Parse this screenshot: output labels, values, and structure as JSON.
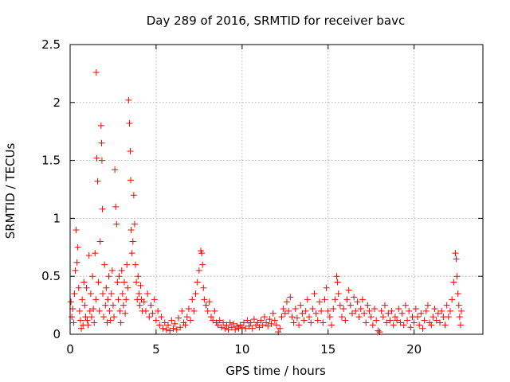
{
  "chart_data": {
    "type": "scatter",
    "title": "Day 289 of 2016, SRMTID for receiver bavc",
    "xlabel": "GPS time / hours",
    "ylabel": "SRMTID / TECUs",
    "xlim": [
      0,
      24
    ],
    "ylim": [
      0,
      2.5
    ],
    "x_ticks": [
      0,
      5,
      10,
      15,
      20
    ],
    "x_tick_labels": [
      "0",
      "5",
      "10",
      "15",
      "20"
    ],
    "y_ticks": [
      0,
      0.5,
      1,
      1.5,
      2,
      2.5
    ],
    "y_tick_labels": [
      "0",
      "0.5",
      "1",
      "1.5",
      "2",
      "2.5"
    ],
    "grid": true,
    "marker": "+",
    "color": "#ff0000",
    "points": [
      [
        0.05,
        0.28
      ],
      [
        0.1,
        0.15
      ],
      [
        0.15,
        0.22
      ],
      [
        0.2,
        0.1
      ],
      [
        0.25,
        0.35
      ],
      [
        0.3,
        0.55
      ],
      [
        0.35,
        0.9
      ],
      [
        0.4,
        0.62
      ],
      [
        0.45,
        0.75
      ],
      [
        0.5,
        0.4
      ],
      [
        0.55,
        0.2
      ],
      [
        0.6,
        0.12
      ],
      [
        0.65,
        0.05
      ],
      [
        0.7,
        0.3
      ],
      [
        0.75,
        0.08
      ],
      [
        0.8,
        0.45
      ],
      [
        0.85,
        0.25
      ],
      [
        0.9,
        0.15
      ],
      [
        0.95,
        0.4
      ],
      [
        1.0,
        0.12
      ],
      [
        1.05,
        0.08
      ],
      [
        1.1,
        0.68
      ],
      [
        1.15,
        0.2
      ],
      [
        1.2,
        0.35
      ],
      [
        1.25,
        0.15
      ],
      [
        1.3,
        0.5
      ],
      [
        1.35,
        0.22
      ],
      [
        1.4,
        0.1
      ],
      [
        1.45,
        0.7
      ],
      [
        1.5,
        0.3
      ],
      [
        1.52,
        2.26
      ],
      [
        1.55,
        1.52
      ],
      [
        1.6,
        1.32
      ],
      [
        1.65,
        0.45
      ],
      [
        1.7,
        0.2
      ],
      [
        1.75,
        0.8
      ],
      [
        1.8,
        1.8
      ],
      [
        1.83,
        1.65
      ],
      [
        1.85,
        1.5
      ],
      [
        1.88,
        1.08
      ],
      [
        1.9,
        0.35
      ],
      [
        1.95,
        0.15
      ],
      [
        2.0,
        0.6
      ],
      [
        2.05,
        0.25
      ],
      [
        2.1,
        0.4
      ],
      [
        2.15,
        0.1
      ],
      [
        2.2,
        0.3
      ],
      [
        2.25,
        0.5
      ],
      [
        2.3,
        0.2
      ],
      [
        2.35,
        0.12
      ],
      [
        2.4,
        0.35
      ],
      [
        2.45,
        0.55
      ],
      [
        2.5,
        0.25
      ],
      [
        2.55,
        0.15
      ],
      [
        2.6,
        1.42
      ],
      [
        2.65,
        1.1
      ],
      [
        2.7,
        0.95
      ],
      [
        2.75,
        0.45
      ],
      [
        2.8,
        0.3
      ],
      [
        2.85,
        0.5
      ],
      [
        2.9,
        0.2
      ],
      [
        2.95,
        0.1
      ],
      [
        3.0,
        0.55
      ],
      [
        3.05,
        0.35
      ],
      [
        3.1,
        0.25
      ],
      [
        3.15,
        0.45
      ],
      [
        3.2,
        0.18
      ],
      [
        3.25,
        0.3
      ],
      [
        3.3,
        0.6
      ],
      [
        3.35,
        0.4
      ],
      [
        3.4,
        2.02
      ],
      [
        3.45,
        1.82
      ],
      [
        3.5,
        1.58
      ],
      [
        3.52,
        1.33
      ],
      [
        3.55,
        0.9
      ],
      [
        3.6,
        0.7
      ],
      [
        3.65,
        0.8
      ],
      [
        3.7,
        1.2
      ],
      [
        3.75,
        0.95
      ],
      [
        3.8,
        0.6
      ],
      [
        3.85,
        0.45
      ],
      [
        3.9,
        0.3
      ],
      [
        3.95,
        0.5
      ],
      [
        4.0,
        0.35
      ],
      [
        4.05,
        0.25
      ],
      [
        4.1,
        0.42
      ],
      [
        4.15,
        0.3
      ],
      [
        4.2,
        0.2
      ],
      [
        4.3,
        0.28
      ],
      [
        4.4,
        0.2
      ],
      [
        4.5,
        0.35
      ],
      [
        4.6,
        0.15
      ],
      [
        4.7,
        0.25
      ],
      [
        4.8,
        0.18
      ],
      [
        4.9,
        0.3
      ],
      [
        5.0,
        0.12
      ],
      [
        5.1,
        0.2
      ],
      [
        5.2,
        0.08
      ],
      [
        5.3,
        0.15
      ],
      [
        5.4,
        0.05
      ],
      [
        5.5,
        0.1
      ],
      [
        5.6,
        0.04
      ],
      [
        5.7,
        0.08
      ],
      [
        5.8,
        0.03
      ],
      [
        5.9,
        0.12
      ],
      [
        6.0,
        0.05
      ],
      [
        6.1,
        0.09
      ],
      [
        6.2,
        0.04
      ],
      [
        6.3,
        0.14
      ],
      [
        6.4,
        0.06
      ],
      [
        6.5,
        0.2
      ],
      [
        6.6,
        0.1
      ],
      [
        6.7,
        0.08
      ],
      [
        6.8,
        0.15
      ],
      [
        6.9,
        0.22
      ],
      [
        7.0,
        0.12
      ],
      [
        7.1,
        0.3
      ],
      [
        7.2,
        0.2
      ],
      [
        7.3,
        0.35
      ],
      [
        7.4,
        0.45
      ],
      [
        7.5,
        0.55
      ],
      [
        7.6,
        0.72
      ],
      [
        7.65,
        0.7
      ],
      [
        7.7,
        0.6
      ],
      [
        7.75,
        0.4
      ],
      [
        7.8,
        0.3
      ],
      [
        7.9,
        0.25
      ],
      [
        8.0,
        0.2
      ],
      [
        8.1,
        0.28
      ],
      [
        8.2,
        0.15
      ],
      [
        8.3,
        0.12
      ],
      [
        8.4,
        0.2
      ],
      [
        8.5,
        0.1
      ],
      [
        8.6,
        0.08
      ],
      [
        8.7,
        0.12
      ],
      [
        8.8,
        0.06
      ],
      [
        8.9,
        0.1
      ],
      [
        9.0,
        0.05
      ],
      [
        9.1,
        0.08
      ],
      [
        9.2,
        0.04
      ],
      [
        9.3,
        0.1
      ],
      [
        9.4,
        0.06
      ],
      [
        9.5,
        0.09
      ],
      [
        9.6,
        0.04
      ],
      [
        9.7,
        0.07
      ],
      [
        9.8,
        0.05
      ],
      [
        9.9,
        0.08
      ],
      [
        10.0,
        0.06
      ],
      [
        10.1,
        0.1
      ],
      [
        10.2,
        0.05
      ],
      [
        10.3,
        0.12
      ],
      [
        10.4,
        0.07
      ],
      [
        10.5,
        0.1
      ],
      [
        10.6,
        0.05
      ],
      [
        10.7,
        0.13
      ],
      [
        10.8,
        0.08
      ],
      [
        10.9,
        0.1
      ],
      [
        11.0,
        0.06
      ],
      [
        11.1,
        0.12
      ],
      [
        11.2,
        0.08
      ],
      [
        11.3,
        0.15
      ],
      [
        11.4,
        0.1
      ],
      [
        11.5,
        0.07
      ],
      [
        11.6,
        0.13
      ],
      [
        11.7,
        0.09
      ],
      [
        11.8,
        0.18
      ],
      [
        11.9,
        0.12
      ],
      [
        12.0,
        0.08
      ],
      [
        12.1,
        0.02
      ],
      [
        12.2,
        0.05
      ],
      [
        12.3,
        0.15
      ],
      [
        12.4,
        0.22
      ],
      [
        12.5,
        0.18
      ],
      [
        12.6,
        0.28
      ],
      [
        12.7,
        0.2
      ],
      [
        12.8,
        0.32
      ],
      [
        12.9,
        0.15
      ],
      [
        13.0,
        0.1
      ],
      [
        13.1,
        0.22
      ],
      [
        13.2,
        0.14
      ],
      [
        13.3,
        0.08
      ],
      [
        13.4,
        0.25
      ],
      [
        13.5,
        0.18
      ],
      [
        13.6,
        0.12
      ],
      [
        13.7,
        0.2
      ],
      [
        13.8,
        0.3
      ],
      [
        13.9,
        0.15
      ],
      [
        14.0,
        0.1
      ],
      [
        14.1,
        0.22
      ],
      [
        14.2,
        0.35
      ],
      [
        14.3,
        0.18
      ],
      [
        14.4,
        0.12
      ],
      [
        14.5,
        0.28
      ],
      [
        14.6,
        0.2
      ],
      [
        14.7,
        0.1
      ],
      [
        14.8,
        0.3
      ],
      [
        14.9,
        0.4
      ],
      [
        15.0,
        0.2
      ],
      [
        15.1,
        0.15
      ],
      [
        15.2,
        0.08
      ],
      [
        15.3,
        0.22
      ],
      [
        15.4,
        0.3
      ],
      [
        15.5,
        0.5
      ],
      [
        15.55,
        0.45
      ],
      [
        15.6,
        0.35
      ],
      [
        15.7,
        0.25
      ],
      [
        15.8,
        0.15
      ],
      [
        15.9,
        0.22
      ],
      [
        16.0,
        0.12
      ],
      [
        16.1,
        0.3
      ],
      [
        16.2,
        0.38
      ],
      [
        16.3,
        0.25
      ],
      [
        16.4,
        0.18
      ],
      [
        16.5,
        0.32
      ],
      [
        16.6,
        0.2
      ],
      [
        16.7,
        0.28
      ],
      [
        16.8,
        0.15
      ],
      [
        16.9,
        0.22
      ],
      [
        17.0,
        0.3
      ],
      [
        17.1,
        0.18
      ],
      [
        17.2,
        0.1
      ],
      [
        17.3,
        0.25
      ],
      [
        17.4,
        0.2
      ],
      [
        17.5,
        0.15
      ],
      [
        17.6,
        0.08
      ],
      [
        17.7,
        0.22
      ],
      [
        17.8,
        0.12
      ],
      [
        17.9,
        0.03
      ],
      [
        18.0,
        0.02
      ],
      [
        18.1,
        0.2
      ],
      [
        18.2,
        0.15
      ],
      [
        18.3,
        0.25
      ],
      [
        18.4,
        0.1
      ],
      [
        18.5,
        0.18
      ],
      [
        18.6,
        0.12
      ],
      [
        18.7,
        0.2
      ],
      [
        18.8,
        0.08
      ],
      [
        18.9,
        0.15
      ],
      [
        19.0,
        0.12
      ],
      [
        19.1,
        0.22
      ],
      [
        19.2,
        0.1
      ],
      [
        19.3,
        0.18
      ],
      [
        19.4,
        0.08
      ],
      [
        19.5,
        0.25
      ],
      [
        19.6,
        0.12
      ],
      [
        19.7,
        0.2
      ],
      [
        19.8,
        0.06
      ],
      [
        19.9,
        0.15
      ],
      [
        20.0,
        0.1
      ],
      [
        20.1,
        0.22
      ],
      [
        20.2,
        0.15
      ],
      [
        20.3,
        0.08
      ],
      [
        20.4,
        0.18
      ],
      [
        20.5,
        0.05
      ],
      [
        20.6,
        0.12
      ],
      [
        20.7,
        0.2
      ],
      [
        20.8,
        0.25
      ],
      [
        20.9,
        0.1
      ],
      [
        21.0,
        0.08
      ],
      [
        21.1,
        0.15
      ],
      [
        21.2,
        0.22
      ],
      [
        21.3,
        0.12
      ],
      [
        21.4,
        0.18
      ],
      [
        21.5,
        0.1
      ],
      [
        21.6,
        0.2
      ],
      [
        21.7,
        0.15
      ],
      [
        21.8,
        0.08
      ],
      [
        21.9,
        0.25
      ],
      [
        22.0,
        0.15
      ],
      [
        22.1,
        0.2
      ],
      [
        22.2,
        0.3
      ],
      [
        22.3,
        0.45
      ],
      [
        22.4,
        0.7
      ],
      [
        22.45,
        0.65
      ],
      [
        22.5,
        0.5
      ],
      [
        22.55,
        0.35
      ],
      [
        22.6,
        0.25
      ],
      [
        22.65,
        0.15
      ],
      [
        22.7,
        0.08
      ],
      [
        22.75,
        0.2
      ]
    ]
  }
}
